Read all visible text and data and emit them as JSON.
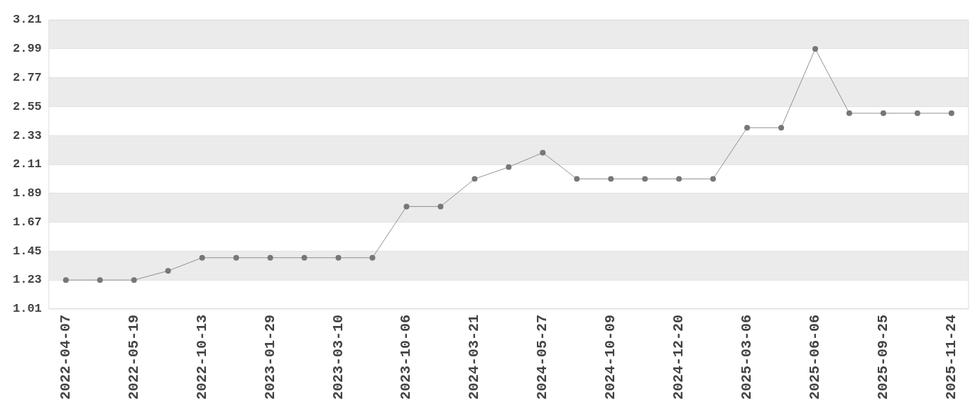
{
  "chart_data": {
    "type": "line",
    "categories": [
      "2022-04-07",
      null,
      "2022-05-19",
      null,
      "2022-10-13",
      null,
      "2023-01-29",
      null,
      "2023-03-10",
      null,
      "2023-10-06",
      null,
      "2024-03-21",
      null,
      "2024-05-27",
      null,
      "2024-10-09",
      null,
      "2024-12-20",
      null,
      "2025-03-06",
      null,
      "2025-06-06",
      null,
      "2025-09-25",
      null,
      "2025-11-24"
    ],
    "series": [
      {
        "color": "#777777",
        "values": [
          1.23,
          1.23,
          1.23,
          1.3,
          1.4,
          1.4,
          1.4,
          1.4,
          1.4,
          1.4,
          1.79,
          1.79,
          2.0,
          2.09,
          2.2,
          2.0,
          2.0,
          2.0,
          2.0,
          2.0,
          2.39,
          2.39,
          2.99,
          2.5,
          2.5,
          2.5,
          2.5
        ]
      }
    ],
    "ylim": [
      1.01,
      3.21
    ],
    "yticks": [
      1.01,
      1.23,
      1.45,
      1.67,
      1.89,
      2.11,
      2.33,
      2.55,
      2.77,
      2.99,
      3.21
    ],
    "grid": "y",
    "legend": false,
    "marker": "circle",
    "line_style": "solid"
  }
}
